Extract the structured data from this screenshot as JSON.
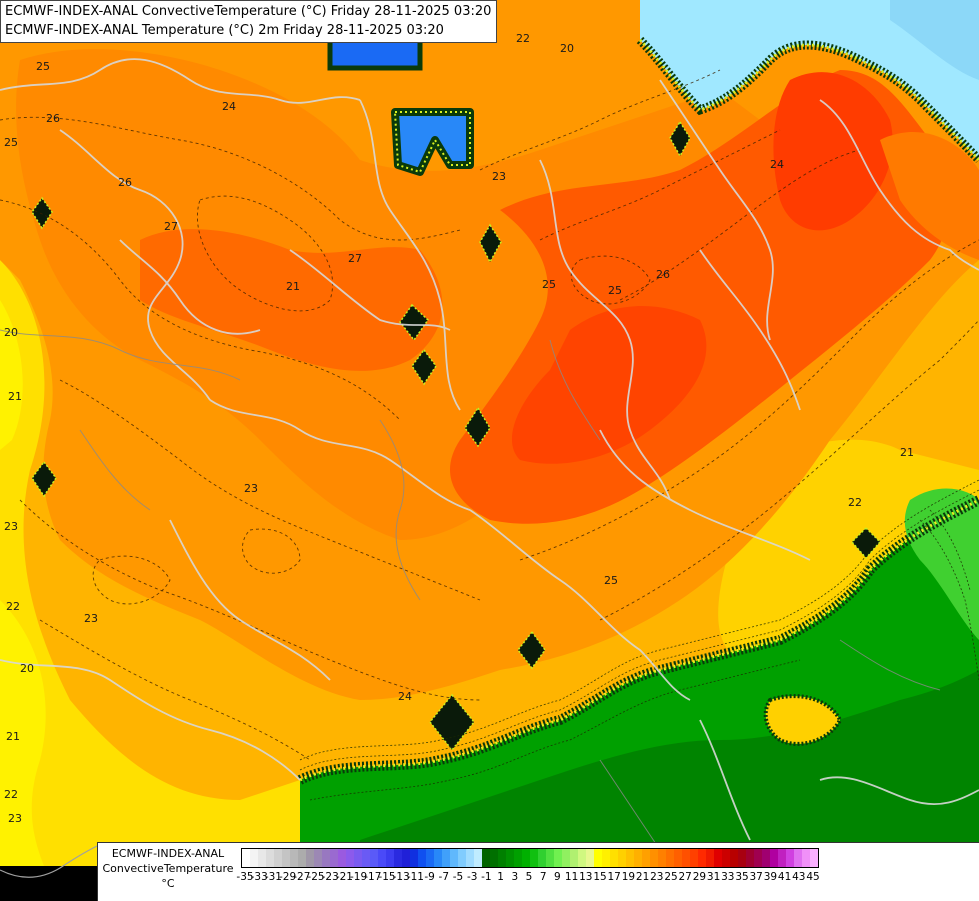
{
  "title": {
    "line1": "ECMWF-INDEX-ANAL ConvectiveTemperature (°C) Friday 28-11-2025 03:20",
    "line2": "ECMWF-INDEX-ANAL Temperature (°C) 2m Friday 28-11-2025 03:20"
  },
  "legend": {
    "line1": "ECMWF-INDEX-ANAL",
    "line2": "ConvectiveTemperature",
    "unit": "°C",
    "ticks": [
      "-35",
      "-33",
      "-31",
      "-29",
      "-27",
      "-25",
      "-23",
      "-21",
      "-19",
      "-17",
      "-15",
      "-13",
      "-11",
      "-9",
      "-7",
      "-5",
      "-3",
      "-1",
      "1",
      "3",
      "5",
      "7",
      "9",
      "11",
      "13",
      "15",
      "17",
      "19",
      "21",
      "23",
      "25",
      "27",
      "29",
      "31",
      "33",
      "35",
      "37",
      "39",
      "41",
      "43",
      "45"
    ],
    "colors": [
      "#ffffff",
      "#f4f4f4",
      "#e8e8e8",
      "#dcdcdc",
      "#d0d0d0",
      "#c4c4c4",
      "#b8b8b8",
      "#acacac",
      "#a098a8",
      "#9c88b4",
      "#9878c0",
      "#9a6ad0",
      "#9a5ae0",
      "#8c5aec",
      "#7a5af0",
      "#6a5af4",
      "#5a5af8",
      "#4a4af8",
      "#3c3cf0",
      "#2a2ae0",
      "#2020d8",
      "#1030e0",
      "#1050f0",
      "#1a6af4",
      "#2888f8",
      "#40a0fa",
      "#60b8fc",
      "#80ccfe",
      "#a0dcff",
      "#c0ecff",
      "#006400",
      "#007000",
      "#008000",
      "#009000",
      "#00a000",
      "#00b000",
      "#10c010",
      "#30d030",
      "#50e040",
      "#70f050",
      "#90f060",
      "#b0f070",
      "#d0f880",
      "#e8f890",
      "#ffff00",
      "#fff000",
      "#ffe000",
      "#ffd000",
      "#ffc000",
      "#ffb000",
      "#ffa000",
      "#ff9000",
      "#ff8000",
      "#ff7000",
      "#ff6000",
      "#ff5000",
      "#ff4000",
      "#ff2a00",
      "#f01a00",
      "#e00000",
      "#cc0000",
      "#b80000",
      "#a80010",
      "#a00030",
      "#a00050",
      "#a00070",
      "#b000a0",
      "#c020c0",
      "#d040e0",
      "#e070f0",
      "#f090f8",
      "#fab0ff"
    ],
    "tick_start": -35,
    "tick_step": 2
  },
  "contour_labels": [
    "25",
    "26",
    "24",
    "25",
    "22",
    "20",
    "23",
    "26",
    "21",
    "27",
    "25",
    "26",
    "25",
    "24",
    "27",
    "21",
    "20",
    "21",
    "23",
    "22",
    "23",
    "25",
    "22",
    "20",
    "23",
    "24",
    "21",
    "22",
    "23"
  ]
}
